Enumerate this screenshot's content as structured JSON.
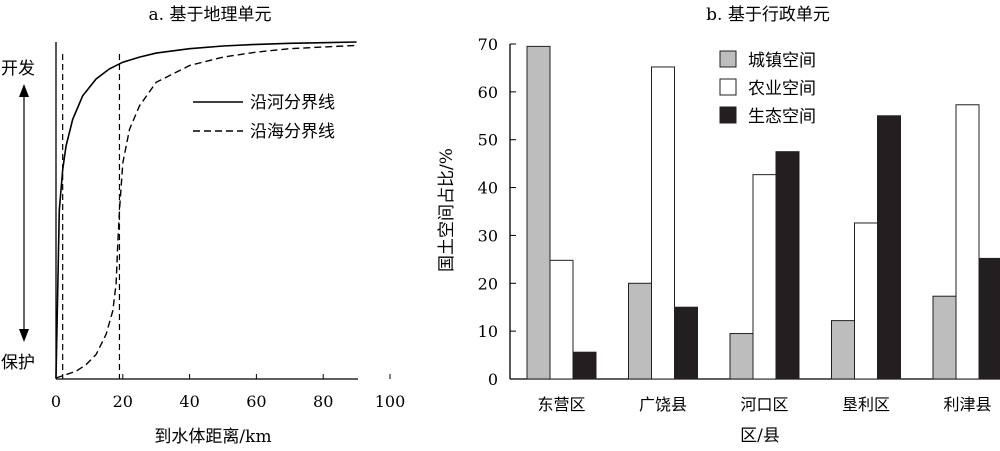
{
  "chart_data": [
    {
      "type": "line",
      "title": "a. 基于地理单元",
      "xlabel": "到水体距离/km",
      "ylabel_top": "开发",
      "ylabel_bottom": "保护",
      "xlim": [
        0,
        100
      ],
      "xticks": [
        "0",
        "20",
        "40",
        "60",
        "80",
        "100"
      ],
      "grid": false,
      "legend_position": "top-right",
      "series": [
        {
          "name": "沿河分界线",
          "style": "solid",
          "x": [
            0,
            1,
            2,
            3,
            5,
            8,
            12,
            16,
            20,
            25,
            30,
            40,
            50,
            60,
            70,
            80,
            90
          ],
          "y": [
            0.0,
            0.5,
            0.62,
            0.69,
            0.77,
            0.84,
            0.89,
            0.92,
            0.94,
            0.955,
            0.967,
            0.98,
            0.988,
            0.993,
            0.996,
            0.998,
            1.0
          ]
        },
        {
          "name": "沿海分界线",
          "style": "dashed",
          "x": [
            0,
            3,
            6,
            9,
            12,
            15,
            17,
            18,
            18.5,
            19,
            20,
            22,
            25,
            30,
            40,
            50,
            60,
            70,
            80,
            90
          ],
          "y": [
            0.0,
            0.01,
            0.02,
            0.04,
            0.07,
            0.13,
            0.2,
            0.28,
            0.4,
            0.5,
            0.64,
            0.74,
            0.81,
            0.88,
            0.93,
            0.955,
            0.97,
            0.98,
            0.985,
            0.99
          ]
        }
      ],
      "reference_lines_x": [
        2,
        19
      ]
    },
    {
      "type": "bar",
      "title": "b. 基于行政单元",
      "xlabel": "区/县",
      "ylabel": "国土空间占比/%",
      "ylim": [
        0,
        70
      ],
      "yticks": [
        "0",
        "10",
        "20",
        "30",
        "40",
        "50",
        "60",
        "70"
      ],
      "grid": false,
      "legend_position": "top-center",
      "categories": [
        "东营区",
        "广饶县",
        "河口区",
        "垦利区",
        "利津县"
      ],
      "series": [
        {
          "name": "城镇空间",
          "color": "#bdbdbd",
          "values": [
            69.5,
            20,
            9.5,
            12.2,
            17.3
          ]
        },
        {
          "name": "农业空间",
          "color": "#ffffff",
          "values": [
            24.8,
            65.2,
            42.7,
            32.6,
            57.3
          ]
        },
        {
          "name": "生态空间",
          "color": "#231f20",
          "values": [
            5.6,
            15,
            47.5,
            55,
            25.2
          ]
        }
      ]
    }
  ]
}
